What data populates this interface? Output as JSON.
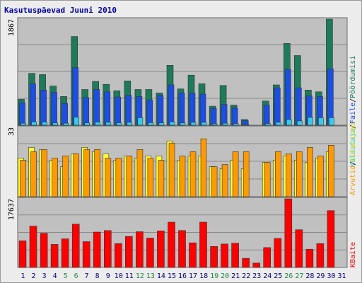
{
  "title": "Kasutuspäevad Juuni 2010",
  "colors": {
    "background": "#ececec",
    "plot_bg": "#c0c0c0",
    "title": "#0000aa",
    "visits": "#1d7b5a",
    "hits": "#1c4ee6",
    "pages": "#33ccee",
    "kb_out": "#ff9900",
    "kb_in": "#ffff33",
    "bytes": "#ff0000",
    "weekend": "#228844",
    "weekday": "#000080"
  },
  "legend": {
    "visits": "Pöördumisi",
    "hits": "Faile",
    "pages": "Külastaja",
    "kb_in": "Külalised",
    "kb_out": "Arvutid",
    "bytes": "KBaite",
    "sep": "/"
  },
  "chart_data": [
    {
      "type": "bar",
      "name": "top",
      "ymax_label": "1867",
      "ylim": [
        0,
        1867
      ],
      "categories": [
        "1",
        "2",
        "3",
        "4",
        "5",
        "6",
        "7",
        "8",
        "9",
        "10",
        "11",
        "12",
        "13",
        "14",
        "15",
        "16",
        "17",
        "18",
        "19",
        "20",
        "21",
        "22",
        "23",
        "24",
        "25",
        "26",
        "27",
        "28",
        "29",
        "30",
        "31"
      ],
      "series": [
        {
          "name": "Pöördumisi",
          "values": [
            450,
            900,
            880,
            680,
            500,
            1540,
            620,
            760,
            710,
            600,
            770,
            620,
            620,
            560,
            1040,
            630,
            870,
            720,
            330,
            690,
            350,
            100,
            0,
            420,
            700,
            1420,
            1210,
            610,
            580,
            1870,
            0
          ]
        },
        {
          "name": "Faile",
          "values": [
            390,
            720,
            610,
            570,
            380,
            1000,
            480,
            620,
            580,
            490,
            520,
            500,
            440,
            520,
            700,
            560,
            560,
            540,
            290,
            360,
            300,
            80,
            0,
            350,
            650,
            970,
            650,
            510,
            500,
            980,
            0
          ]
        },
        {
          "name": "Külastaja",
          "values": [
            35,
            60,
            55,
            40,
            35,
            140,
            40,
            55,
            50,
            40,
            50,
            130,
            45,
            40,
            60,
            40,
            50,
            50,
            25,
            35,
            30,
            10,
            0,
            30,
            50,
            100,
            75,
            135,
            130,
            130,
            0
          ]
        }
      ]
    },
    {
      "type": "bar",
      "name": "middle",
      "ymax_label": "33",
      "ylim": [
        0,
        33
      ],
      "categories": [
        "1",
        "2",
        "3",
        "4",
        "5",
        "6",
        "7",
        "8",
        "9",
        "10",
        "11",
        "12",
        "13",
        "14",
        "15",
        "16",
        "17",
        "18",
        "19",
        "20",
        "21",
        "22",
        "23",
        "24",
        "25",
        "26",
        "27",
        "28",
        "29",
        "30",
        "31"
      ],
      "series": [
        {
          "name": "Külalised",
          "values": [
            18,
            23,
            22,
            17,
            14,
            20,
            23,
            21,
            20,
            17,
            19,
            18,
            19,
            19,
            26,
            17,
            19,
            19,
            14,
            13,
            17,
            13,
            0,
            16,
            17,
            19,
            17,
            16,
            18,
            21,
            0
          ]
        },
        {
          "name": "Arvutid",
          "values": [
            17,
            21,
            22,
            18,
            19,
            20,
            22,
            22,
            18,
            18,
            19,
            22,
            18,
            17,
            25,
            19,
            21,
            27,
            14,
            15,
            21,
            21,
            0,
            16,
            21,
            20,
            21,
            23,
            19,
            24,
            0
          ]
        }
      ]
    },
    {
      "type": "bar",
      "name": "bottom",
      "ymax_label": "17637",
      "ylim": [
        0,
        17637
      ],
      "categories": [
        "1",
        "2",
        "3",
        "4",
        "5",
        "6",
        "7",
        "8",
        "9",
        "10",
        "11",
        "12",
        "13",
        "14",
        "15",
        "16",
        "17",
        "18",
        "19",
        "20",
        "21",
        "22",
        "23",
        "24",
        "25",
        "26",
        "27",
        "28",
        "29",
        "30",
        "31"
      ],
      "series": [
        {
          "name": "KBaite",
          "values": [
            6700,
            10400,
            8600,
            5800,
            7200,
            10900,
            6500,
            8900,
            9300,
            6000,
            7800,
            9000,
            7400,
            9200,
            11400,
            9300,
            6200,
            11400,
            5300,
            5900,
            6100,
            2300,
            1100,
            5000,
            7300,
            17637,
            9500,
            4600,
            6000,
            14300,
            0
          ]
        }
      ]
    }
  ],
  "x_labels": [
    "1",
    "2",
    "3",
    "4",
    "5",
    "6",
    "7",
    "8",
    "9",
    "10",
    "11",
    "12",
    "13",
    "14",
    "15",
    "16",
    "17",
    "18",
    "19",
    "20",
    "21",
    "22",
    "23",
    "24",
    "25",
    "26",
    "27",
    "28",
    "29",
    "30",
    "31"
  ],
  "weekend_days": [
    "5",
    "6",
    "12",
    "13",
    "19",
    "20",
    "26",
    "27"
  ]
}
